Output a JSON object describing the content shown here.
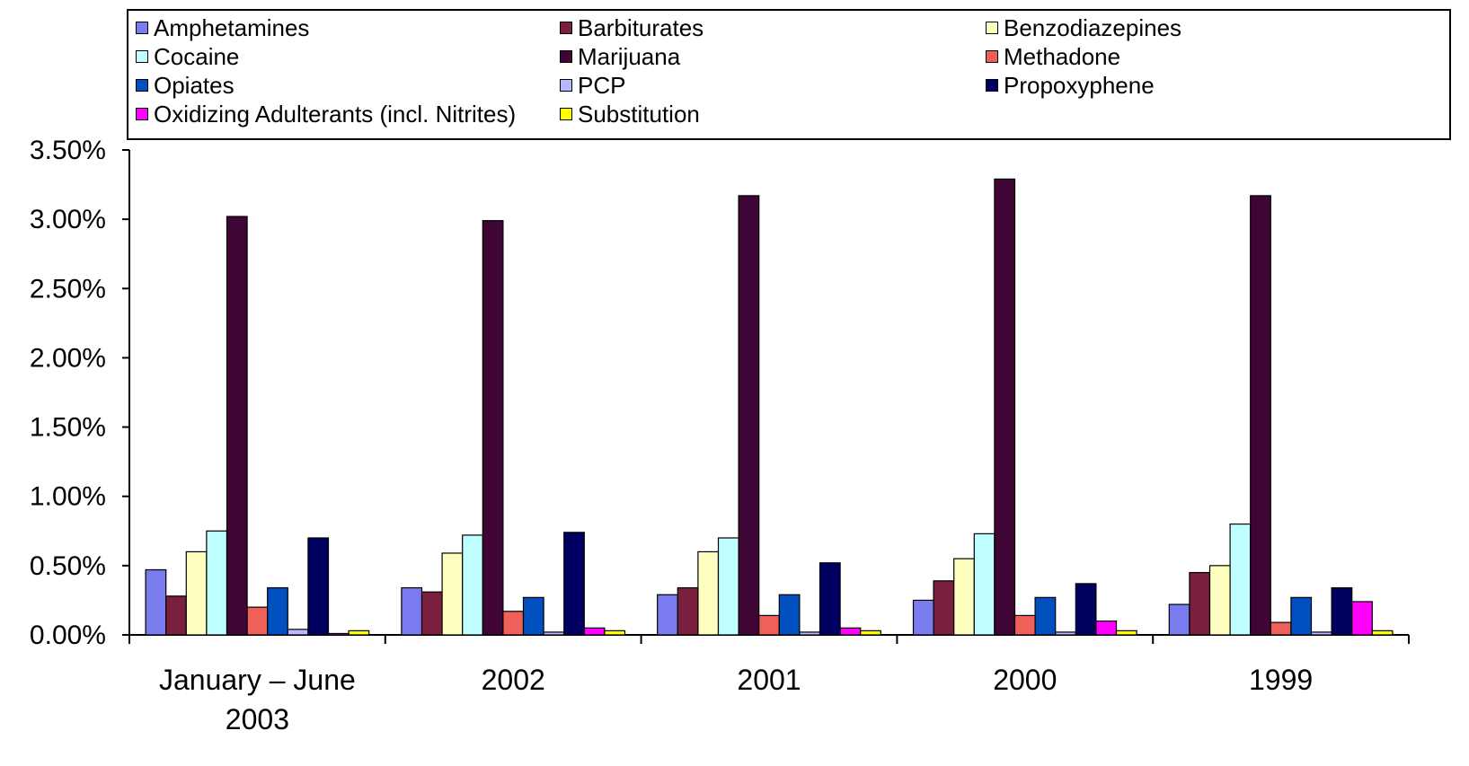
{
  "chart_data": {
    "type": "bar",
    "title": "",
    "xlabel": "",
    "ylabel": "",
    "categories": [
      "January – June 2003",
      "2002",
      "2001",
      "2000",
      "1999"
    ],
    "ylim": [
      0,
      3.5
    ],
    "y_ticks": [
      "0.00%",
      "0.50%",
      "1.00%",
      "1.50%",
      "2.00%",
      "2.50%",
      "3.00%",
      "3.50%"
    ],
    "grid": false,
    "legend_position": "top",
    "series": [
      {
        "name": "Amphetamines",
        "color": "#7b7bf0",
        "values": [
          0.47,
          0.34,
          0.29,
          0.25,
          0.22
        ]
      },
      {
        "name": "Barbiturates",
        "color": "#7a1f3d",
        "values": [
          0.28,
          0.31,
          0.34,
          0.39,
          0.45
        ]
      },
      {
        "name": "Benzodiazepines",
        "color": "#ffffc0",
        "values": [
          0.6,
          0.59,
          0.6,
          0.55,
          0.5
        ]
      },
      {
        "name": "Cocaine",
        "color": "#c0ffff",
        "values": [
          0.75,
          0.72,
          0.7,
          0.73,
          0.8
        ]
      },
      {
        "name": "Marijuana",
        "color": "#3f0535",
        "values": [
          3.02,
          2.99,
          3.17,
          3.29,
          3.17
        ]
      },
      {
        "name": "Methadone",
        "color": "#f0605a",
        "values": [
          0.2,
          0.17,
          0.14,
          0.14,
          0.09
        ]
      },
      {
        "name": "Opiates",
        "color": "#0050c0",
        "values": [
          0.34,
          0.27,
          0.29,
          0.27,
          0.27
        ]
      },
      {
        "name": "PCP",
        "color": "#b8b8ff",
        "values": [
          0.04,
          0.02,
          0.02,
          0.02,
          0.02
        ]
      },
      {
        "name": "Propoxyphene",
        "color": "#000060",
        "values": [
          0.7,
          0.74,
          0.52,
          0.37,
          0.34
        ]
      },
      {
        "name": "Oxidizing Adulterants (incl. Nitrites)",
        "color": "#ff00ff",
        "values": [
          0.01,
          0.05,
          0.05,
          0.1,
          0.24
        ]
      },
      {
        "name": "Substitution",
        "color": "#ffff00",
        "values": [
          0.03,
          0.03,
          0.03,
          0.03,
          0.03
        ]
      }
    ]
  }
}
